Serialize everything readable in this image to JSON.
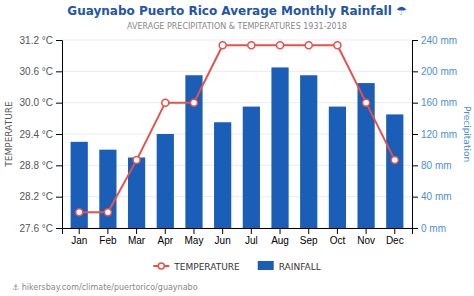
{
  "chart_data": {
    "type": "bar",
    "title": "Guaynabo Puerto Rico Average Monthly Rainfall ☂",
    "subtitle": "AVERAGE PRECIPITATION & TEMPERATURES 1931-2018",
    "ylabel": "TEMPERATURE",
    "y2label": "Precipitation",
    "annotations": [
      "⚓ hikersbay.com/climate/puertorico/guaynabo"
    ],
    "categories": [
      "Jan",
      "Feb",
      "Mar",
      "Apr",
      "May",
      "Jun",
      "Jul",
      "Aug",
      "Sep",
      "Oct",
      "Nov",
      "Dec"
    ],
    "series": [
      {
        "name": "TEMPERATURE",
        "type": "line",
        "marker": "circle",
        "color": "#e8504a",
        "values": [
          27.9,
          27.9,
          28.9,
          30.0,
          30.0,
          31.1,
          31.1,
          31.1,
          31.1,
          31.1,
          30.0,
          28.9
        ]
      },
      {
        "name": "RAINFALL",
        "type": "bar",
        "axis": "y2",
        "color": "#1a5eb8",
        "values": [
          110,
          100,
          90,
          120,
          195,
          135,
          155,
          205,
          195,
          155,
          185,
          145
        ]
      }
    ],
    "ylim": [
      27.6,
      31.2
    ],
    "yticks": [
      {
        "value": 27.6,
        "label": "27.6 °C"
      },
      {
        "value": 28.2,
        "label": "28.2 °C"
      },
      {
        "value": 28.8,
        "label": "28.8 °C"
      },
      {
        "value": 29.4,
        "label": "29.4 °C"
      },
      {
        "value": 30.0,
        "label": "30.0 °C"
      },
      {
        "value": 30.6,
        "label": "30.6 °C"
      },
      {
        "value": 31.2,
        "label": "31.2 °C"
      }
    ],
    "y2lim": [
      0,
      240
    ],
    "y2ticks": [
      {
        "value": 0,
        "label": "0 mm"
      },
      {
        "value": 40,
        "label": "40 mm"
      },
      {
        "value": 80,
        "label": "80 mm"
      },
      {
        "value": 120,
        "label": "120 mm"
      },
      {
        "value": 160,
        "label": "160 mm"
      },
      {
        "value": 200,
        "label": "200 mm"
      },
      {
        "value": 240,
        "label": "240 mm"
      }
    ],
    "grid": true,
    "legend": "bottom"
  }
}
